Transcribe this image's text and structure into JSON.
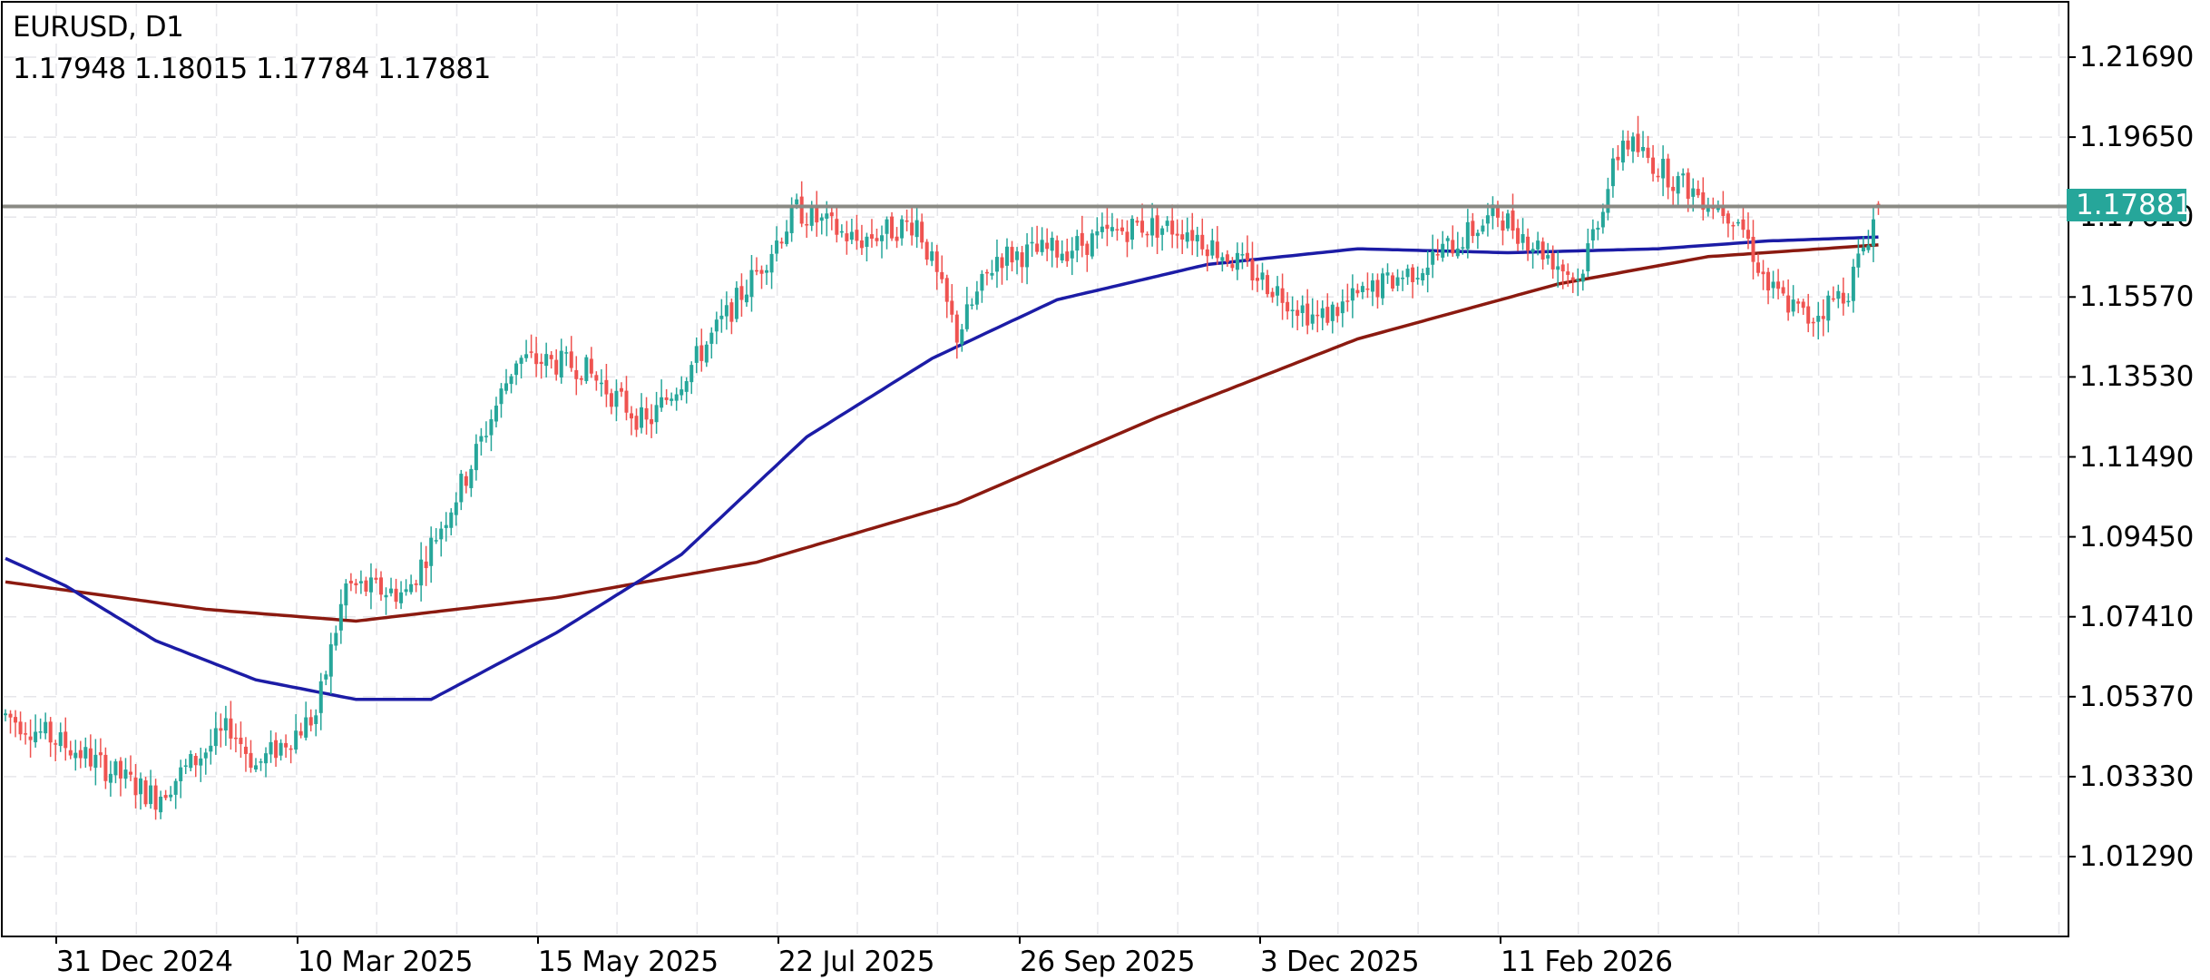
{
  "header": {
    "symbol_timeframe": "EURUSD, D1",
    "ohlc": "1.17948 1.18015 1.17784 1.17881"
  },
  "colors": {
    "bull": "#26a69a",
    "bear": "#ef5350",
    "ma_fast": "#1c1ca6",
    "ma_slow": "#8b1a10",
    "price_line": "#8a8a84",
    "grid": "#e6e6ea",
    "price_tag_bg": "#26a69a"
  },
  "price_tag": "1.17881",
  "chart_data": {
    "type": "candlestick",
    "title": "EURUSD, D1",
    "last_ohlc": {
      "open": 1.17948,
      "high": 1.18015,
      "low": 1.17784,
      "close": 1.17881
    },
    "y_ticks": [
      "1.21690",
      "1.19650",
      "1.17610",
      "1.15570",
      "1.13530",
      "1.11490",
      "1.09450",
      "1.07410",
      "1.05370",
      "1.03330",
      "1.01290"
    ],
    "x_ticks": [
      "31 Dec 2024",
      "10 Mar 2025",
      "15 May 2025",
      "22 Jul 2025",
      "26 Sep 2025",
      "3 Dec 2025",
      "11 Feb 2026"
    ],
    "ylim": [
      0.9967,
      1.2332
    ],
    "current_price_line": 1.17881,
    "close_waypoints": [
      {
        "x": 0,
        "price": 1.049
      },
      {
        "x": 14,
        "price": 1.04
      },
      {
        "x": 30,
        "price": 1.028
      },
      {
        "x": 45,
        "price": 1.046
      },
      {
        "x": 50,
        "price": 1.036
      },
      {
        "x": 62,
        "price": 1.049
      },
      {
        "x": 68,
        "price": 1.082
      },
      {
        "x": 80,
        "price": 1.08
      },
      {
        "x": 92,
        "price": 1.11
      },
      {
        "x": 102,
        "price": 1.14
      },
      {
        "x": 115,
        "price": 1.138
      },
      {
        "x": 128,
        "price": 1.123
      },
      {
        "x": 138,
        "price": 1.14
      },
      {
        "x": 150,
        "price": 1.162
      },
      {
        "x": 158,
        "price": 1.178
      },
      {
        "x": 170,
        "price": 1.17
      },
      {
        "x": 182,
        "price": 1.175
      },
      {
        "x": 190,
        "price": 1.146
      },
      {
        "x": 198,
        "price": 1.166
      },
      {
        "x": 212,
        "price": 1.168
      },
      {
        "x": 226,
        "price": 1.174
      },
      {
        "x": 236,
        "price": 1.173
      },
      {
        "x": 250,
        "price": 1.161
      },
      {
        "x": 262,
        "price": 1.15
      },
      {
        "x": 272,
        "price": 1.157
      },
      {
        "x": 282,
        "price": 1.163
      },
      {
        "x": 298,
        "price": 1.177
      },
      {
        "x": 314,
        "price": 1.16
      },
      {
        "x": 323,
        "price": 1.196
      },
      {
        "x": 334,
        "price": 1.185
      },
      {
        "x": 346,
        "price": 1.176
      },
      {
        "x": 352,
        "price": 1.158
      },
      {
        "x": 360,
        "price": 1.15
      },
      {
        "x": 368,
        "price": 1.158
      },
      {
        "x": 374,
        "price": 1.1788
      }
    ],
    "ma_fast_waypoints": [
      {
        "x": 0,
        "price": 1.089
      },
      {
        "x": 12,
        "price": 1.082
      },
      {
        "x": 30,
        "price": 1.068
      },
      {
        "x": 50,
        "price": 1.058
      },
      {
        "x": 70,
        "price": 1.053
      },
      {
        "x": 85,
        "price": 1.053
      },
      {
        "x": 110,
        "price": 1.07
      },
      {
        "x": 135,
        "price": 1.09
      },
      {
        "x": 160,
        "price": 1.12
      },
      {
        "x": 185,
        "price": 1.14
      },
      {
        "x": 210,
        "price": 1.155
      },
      {
        "x": 240,
        "price": 1.164
      },
      {
        "x": 270,
        "price": 1.168
      },
      {
        "x": 300,
        "price": 1.167
      },
      {
        "x": 330,
        "price": 1.168
      },
      {
        "x": 352,
        "price": 1.17
      },
      {
        "x": 374,
        "price": 1.171
      }
    ],
    "ma_slow_waypoints": [
      {
        "x": 0,
        "price": 1.083
      },
      {
        "x": 40,
        "price": 1.076
      },
      {
        "x": 70,
        "price": 1.073
      },
      {
        "x": 110,
        "price": 1.079
      },
      {
        "x": 150,
        "price": 1.088
      },
      {
        "x": 190,
        "price": 1.103
      },
      {
        "x": 230,
        "price": 1.125
      },
      {
        "x": 270,
        "price": 1.145
      },
      {
        "x": 310,
        "price": 1.159
      },
      {
        "x": 340,
        "price": 1.166
      },
      {
        "x": 374,
        "price": 1.169
      }
    ],
    "legend_position": "top-left",
    "grid": true
  }
}
